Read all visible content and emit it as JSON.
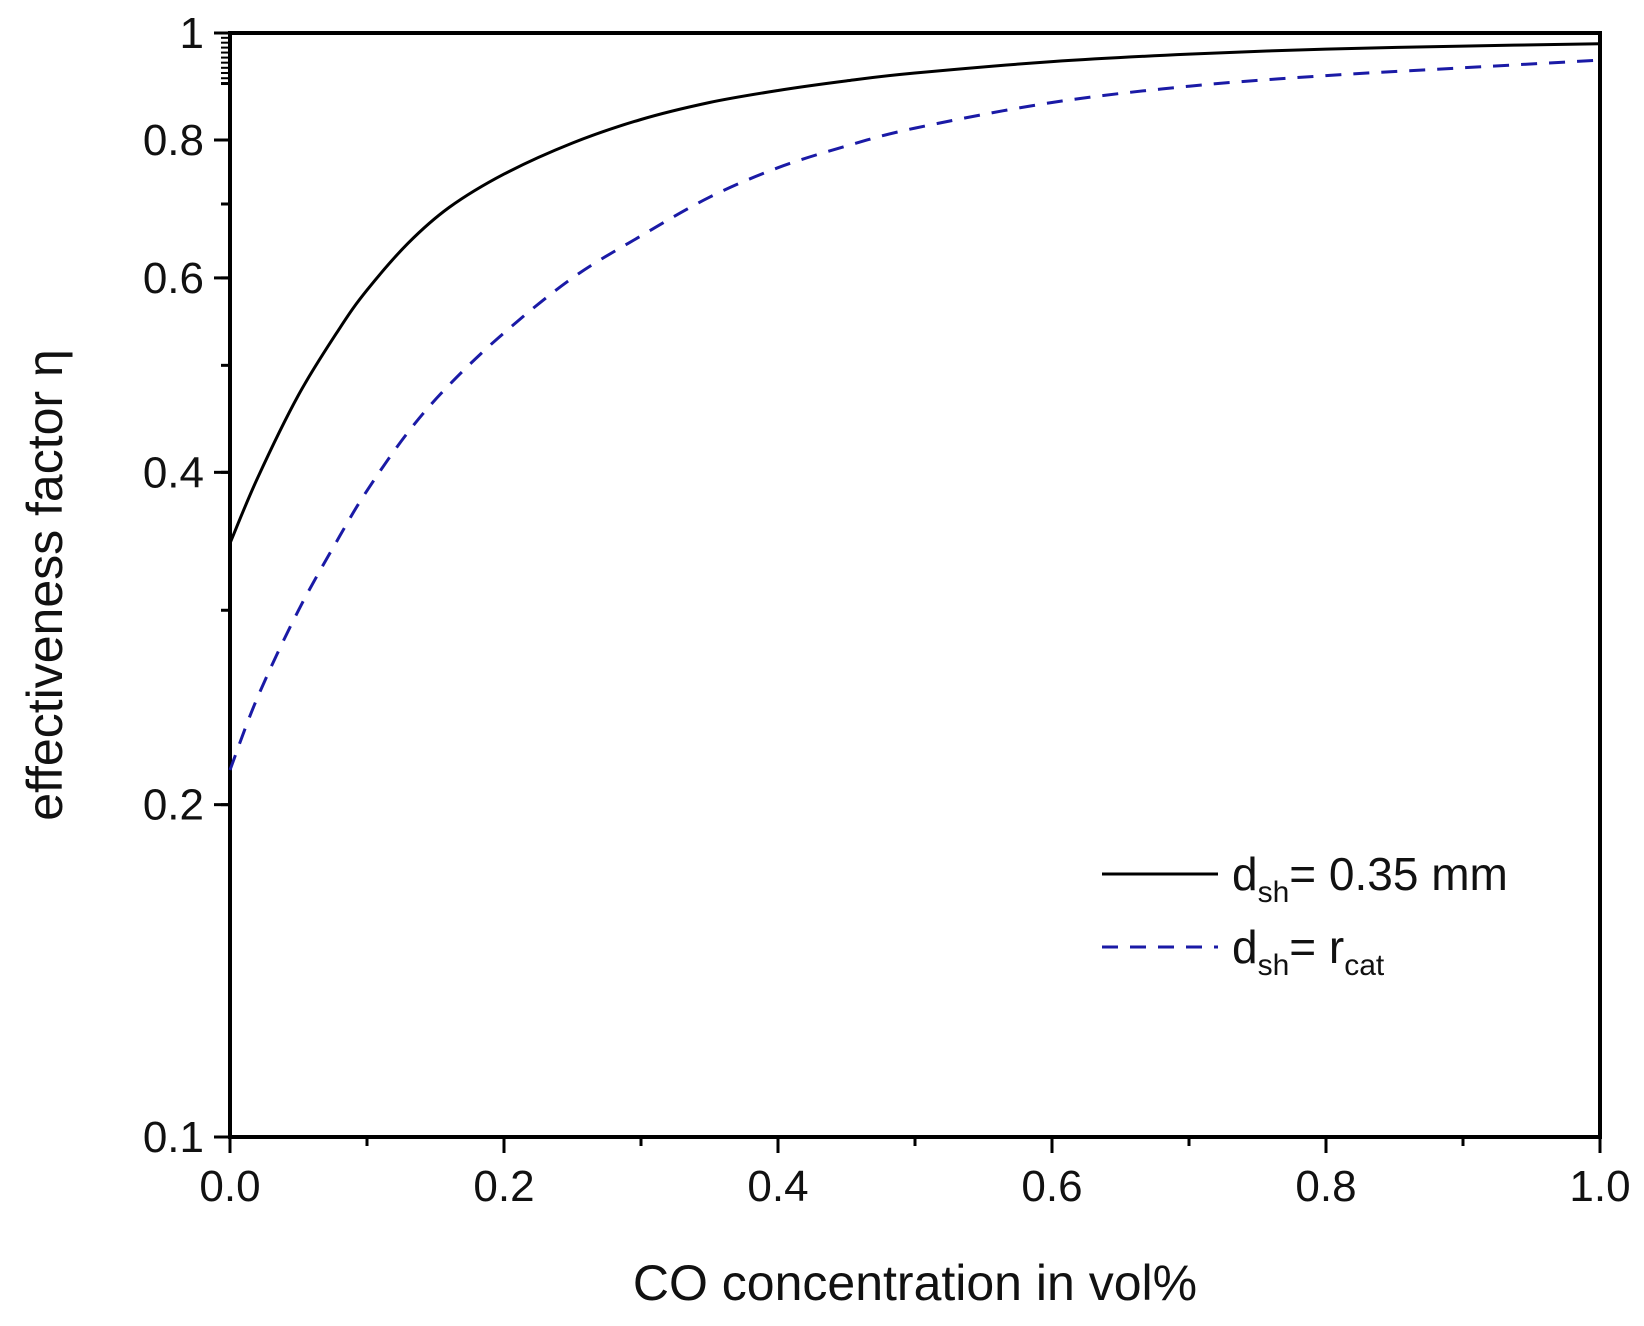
{
  "chart_data": {
    "type": "line",
    "title": "",
    "xlabel": "CO concentration in vol%",
    "ylabel": "effectiveness factor η",
    "xlim": [
      0.0,
      1.0
    ],
    "ylim": [
      0.1,
      1.0
    ],
    "yscale": "log",
    "grid": false,
    "legend_position": "bottom-right",
    "x_ticks": [
      0.0,
      0.2,
      0.4,
      0.6,
      0.8,
      1.0
    ],
    "x_tick_labels": [
      "0.0",
      "0.2",
      "0.4",
      "0.6",
      "0.8",
      "1.0"
    ],
    "y_ticks": [
      0.1,
      0.2,
      0.4,
      0.6,
      0.8,
      1.0
    ],
    "y_tick_labels": [
      "0.1",
      "0.2",
      "0.4",
      "0.6",
      "0.8",
      "1"
    ],
    "series": [
      {
        "name": "d_sh = 0.35 mm",
        "legend_main": "d",
        "legend_sub": "sh",
        "legend_rest": "= 0.35 mm",
        "style": "solid",
        "color": "#000000",
        "x": [
          0.0,
          0.02,
          0.05,
          0.08,
          0.1,
          0.13,
          0.16,
          0.2,
          0.25,
          0.3,
          0.35,
          0.4,
          0.45,
          0.5,
          0.6,
          0.7,
          0.8,
          0.9,
          1.0
        ],
        "y": [
          0.345,
          0.395,
          0.47,
          0.54,
          0.585,
          0.645,
          0.695,
          0.745,
          0.795,
          0.835,
          0.865,
          0.887,
          0.905,
          0.92,
          0.942,
          0.957,
          0.967,
          0.973,
          0.978
        ]
      },
      {
        "name": "d_sh = r_cat",
        "legend_main": "d",
        "legend_sub": "sh",
        "legend_rest": "= r",
        "legend_sub2": "cat",
        "style": "dashed",
        "color": "#1a1aa6",
        "x": [
          0.0,
          0.02,
          0.05,
          0.08,
          0.1,
          0.13,
          0.16,
          0.2,
          0.25,
          0.3,
          0.35,
          0.4,
          0.45,
          0.5,
          0.6,
          0.7,
          0.8,
          0.9,
          1.0
        ],
        "y": [
          0.215,
          0.25,
          0.3,
          0.35,
          0.385,
          0.435,
          0.48,
          0.535,
          0.6,
          0.655,
          0.71,
          0.755,
          0.79,
          0.82,
          0.865,
          0.895,
          0.915,
          0.93,
          0.945
        ]
      }
    ]
  }
}
